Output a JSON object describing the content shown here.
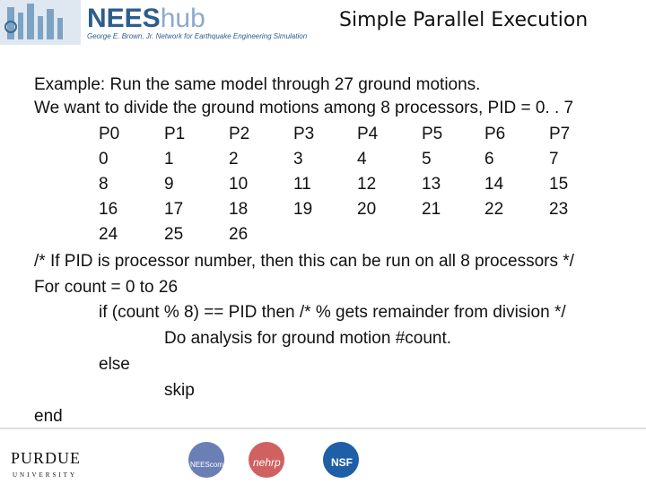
{
  "header": {
    "logo": {
      "brand": "NEES",
      "suffix": "hub",
      "tagline": "George E. Brown, Jr. Network for Earthquake Engineering Simulation"
    },
    "title": "Simple Parallel Execution"
  },
  "body": {
    "intro": [
      "Example: Run the same model through 27 ground motions.",
      "We want to divide the ground motions among 8 processors, PID = 0. . 7"
    ],
    "table": {
      "header": [
        "P0",
        "P1",
        "P2",
        "P3",
        "P4",
        "P5",
        "P6",
        "P7"
      ],
      "rows": [
        [
          0,
          1,
          2,
          3,
          4,
          5,
          6,
          7
        ],
        [
          8,
          9,
          10,
          11,
          12,
          13,
          14,
          15
        ],
        [
          16,
          17,
          18,
          19,
          20,
          21,
          22,
          23
        ],
        [
          24,
          25,
          26
        ]
      ]
    },
    "code": [
      "/*  If PID is processor number, then this can be run on all 8 processors */",
      "For count = 0 to 26",
      "if (count % 8) == PID then  /* % gets remainder from division */",
      "Do analysis for ground motion #count.",
      "else",
      "skip",
      "end"
    ]
  },
  "footer": {
    "logos": [
      "PURDUE",
      "UNIVERSITY",
      "NEEScomm",
      "nehrp",
      "NSF"
    ]
  }
}
